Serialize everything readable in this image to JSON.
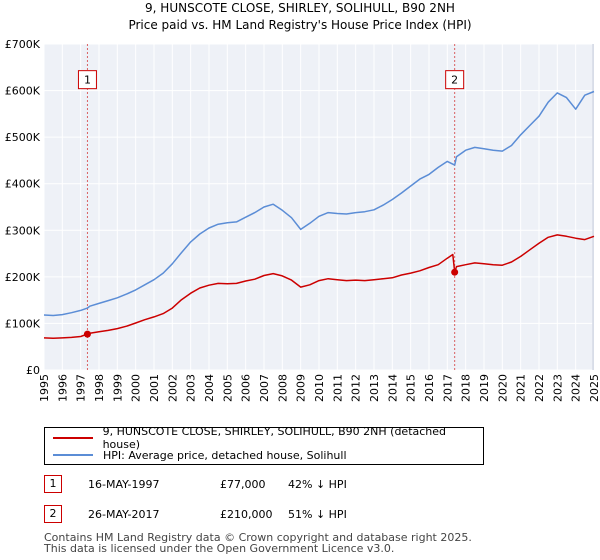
{
  "chart_data": {
    "type": "line",
    "title": "9, HUNSCOTE CLOSE, SHIRLEY, SOLIHULL, B90 2NH",
    "subtitle": "Price paid vs. HM Land Registry's House Price Index (HPI)",
    "xlabel": "",
    "ylabel": "",
    "xlim": [
      1995,
      2025
    ],
    "ylim": [
      0,
      700000
    ],
    "y_ticks": [
      0,
      100000,
      200000,
      300000,
      400000,
      500000,
      600000,
      700000
    ],
    "y_tick_labels": [
      "£0",
      "£100K",
      "£200K",
      "£300K",
      "£400K",
      "£500K",
      "£600K",
      "£700K"
    ],
    "x_ticks": [
      1995,
      1996,
      1997,
      1998,
      1999,
      2000,
      2001,
      2002,
      2003,
      2004,
      2005,
      2006,
      2007,
      2008,
      2009,
      2010,
      2011,
      2012,
      2013,
      2014,
      2015,
      2016,
      2017,
      2018,
      2019,
      2020,
      2021,
      2022,
      2023,
      2024,
      2025
    ],
    "x_tick_labels": [
      "1995",
      "1996",
      "1997",
      "1998",
      "1999",
      "2000",
      "2001",
      "2002",
      "2003",
      "2004",
      "2005",
      "2006",
      "2007",
      "2008",
      "2009",
      "2010",
      "2011",
      "2012",
      "2013",
      "2014",
      "2015",
      "2016",
      "2017",
      "2018",
      "2019",
      "2020",
      "2021",
      "2022",
      "2023",
      "2024",
      "2025"
    ],
    "grid": true,
    "series": [
      {
        "name": "9, HUNSCOTE CLOSE, SHIRLEY, SOLIHULL, B90 2NH (detached house)",
        "color": "#cc0000",
        "x": [
          1995.0,
          1995.5,
          1996.0,
          1996.5,
          1997.0,
          1997.37,
          1997.5,
          1998.0,
          1998.5,
          1999.0,
          1999.5,
          2000.0,
          2000.5,
          2001.0,
          2001.5,
          2002.0,
          2002.5,
          2003.0,
          2003.5,
          2004.0,
          2004.5,
          2005.0,
          2005.5,
          2006.0,
          2006.5,
          2007.0,
          2007.5,
          2008.0,
          2008.5,
          2009.0,
          2009.5,
          2010.0,
          2010.5,
          2011.0,
          2011.5,
          2012.0,
          2012.5,
          2013.0,
          2013.5,
          2014.0,
          2014.5,
          2015.0,
          2015.5,
          2016.0,
          2016.5,
          2017.0,
          2017.3,
          2017.4,
          2017.5,
          2018.0,
          2018.5,
          2019.0,
          2019.5,
          2020.0,
          2020.5,
          2021.0,
          2021.5,
          2022.0,
          2022.5,
          2023.0,
          2023.5,
          2024.0,
          2024.5,
          2025.0
        ],
        "values": [
          69000,
          68000,
          69000,
          70000,
          72000,
          77000,
          79000,
          82000,
          85000,
          89000,
          94000,
          101000,
          108000,
          114000,
          121000,
          133000,
          151000,
          165000,
          176000,
          182000,
          186000,
          185000,
          186000,
          191000,
          195000,
          203000,
          207000,
          202000,
          193000,
          178000,
          183000,
          192000,
          196000,
          194000,
          192000,
          193000,
          192000,
          194000,
          196000,
          198000,
          204000,
          208000,
          213000,
          220000,
          226000,
          240000,
          248000,
          210000,
          222000,
          226000,
          230000,
          228000,
          226000,
          225000,
          232000,
          244000,
          258000,
          272000,
          285000,
          290000,
          287000,
          283000,
          280000,
          287000
        ]
      },
      {
        "name": "HPI: Average price, detached house, Solihull",
        "color": "#5b8dd6",
        "x": [
          1995.0,
          1995.5,
          1996.0,
          1996.5,
          1997.0,
          1997.37,
          1997.5,
          1998.0,
          1998.5,
          1999.0,
          1999.5,
          2000.0,
          2000.5,
          2001.0,
          2001.5,
          2002.0,
          2002.5,
          2003.0,
          2003.5,
          2004.0,
          2004.5,
          2005.0,
          2005.5,
          2006.0,
          2006.5,
          2007.0,
          2007.5,
          2008.0,
          2008.5,
          2009.0,
          2009.5,
          2010.0,
          2010.5,
          2011.0,
          2011.5,
          2012.0,
          2012.5,
          2013.0,
          2013.5,
          2014.0,
          2014.5,
          2015.0,
          2015.5,
          2016.0,
          2016.5,
          2017.0,
          2017.4,
          2017.5,
          2018.0,
          2018.5,
          2019.0,
          2019.5,
          2020.0,
          2020.5,
          2021.0,
          2021.5,
          2022.0,
          2022.5,
          2023.0,
          2023.5,
          2024.0,
          2024.5,
          2025.0
        ],
        "values": [
          118000,
          117000,
          119000,
          123000,
          128000,
          133000,
          137000,
          143000,
          149000,
          155000,
          163000,
          172000,
          183000,
          194000,
          208000,
          228000,
          252000,
          275000,
          292000,
          305000,
          313000,
          316000,
          318000,
          328000,
          338000,
          350000,
          356000,
          343000,
          327000,
          302000,
          315000,
          330000,
          338000,
          336000,
          335000,
          338000,
          340000,
          344000,
          354000,
          366000,
          380000,
          395000,
          410000,
          420000,
          435000,
          448000,
          440000,
          458000,
          472000,
          478000,
          475000,
          472000,
          470000,
          482000,
          505000,
          525000,
          545000,
          575000,
          595000,
          585000,
          560000,
          590000,
          598000
        ]
      }
    ],
    "annotations": [
      {
        "label": "1",
        "x": 1997.37,
        "y": 77000
      },
      {
        "label": "2",
        "x": 2017.4,
        "y": 210000
      }
    ]
  },
  "legend": {
    "entries": [
      {
        "label": "9, HUNSCOTE CLOSE, SHIRLEY, SOLIHULL, B90 2NH (detached house)",
        "color": "#cc0000"
      },
      {
        "label": "HPI: Average price, detached house, Solihull",
        "color": "#5b8dd6"
      }
    ]
  },
  "sales": [
    {
      "num": "1",
      "date": "16-MAY-1997",
      "price": "£77,000",
      "hpi": "42% ↓ HPI"
    },
    {
      "num": "2",
      "date": "26-MAY-2017",
      "price": "£210,000",
      "hpi": "51% ↓ HPI"
    }
  ],
  "footer": {
    "line1": "Contains HM Land Registry data © Crown copyright and database right 2025.",
    "line2": "This data is licensed under the Open Government Licence v3.0."
  }
}
